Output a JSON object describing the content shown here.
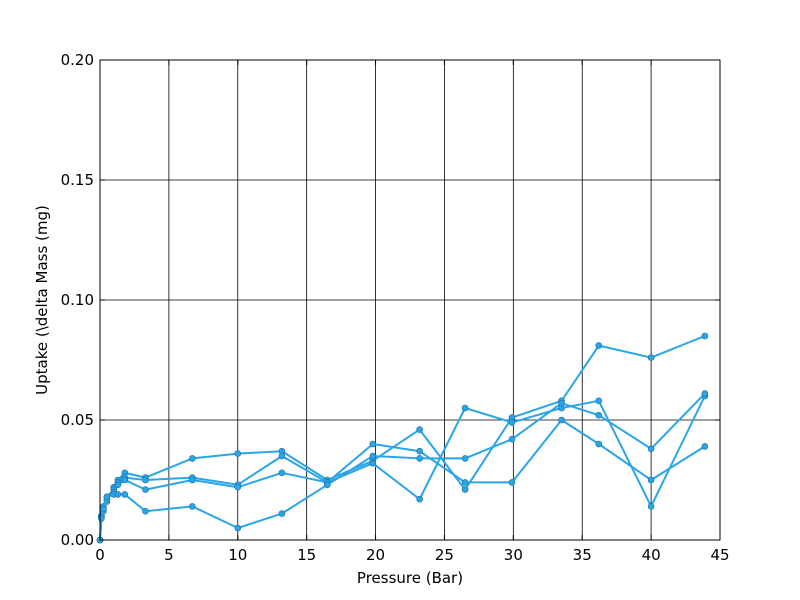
{
  "chart_data": {
    "type": "line",
    "title": "",
    "xlabel": "Pressure (Bar)",
    "ylabel": "Uptake (\\delta Mass (mg)",
    "xlim": [
      0,
      45
    ],
    "ylim": [
      0,
      0.2
    ],
    "xticks": [
      0,
      5,
      10,
      15,
      20,
      25,
      30,
      35,
      40,
      45
    ],
    "yticks": [
      0,
      0.05,
      0.1,
      0.15,
      0.2
    ],
    "xtick_labels": [
      "0",
      "5",
      "10",
      "15",
      "20",
      "25",
      "30",
      "35",
      "40",
      "45"
    ],
    "ytick_labels": [
      "0.00",
      "0.05",
      "0.10",
      "0.15",
      "0.20"
    ],
    "grid": true,
    "line_color": "#2aa5e8",
    "marker_color": "#2aa5e8",
    "series": [
      {
        "x": [
          0,
          0.1,
          0.25,
          0.5,
          1.0,
          1.3,
          1.8,
          3.3,
          6.7,
          10.0,
          13.2,
          16.5,
          19.8,
          23.2,
          26.5,
          29.9,
          33.5,
          36.2,
          40.0,
          43.9
        ],
        "y": [
          0,
          0.01,
          0.014,
          0.016,
          0.022,
          0.025,
          0.028,
          0.026,
          0.034,
          0.036,
          0.037,
          0.025,
          0.033,
          0.046,
          0.021,
          0.051,
          0.058,
          0.081,
          0.076,
          0.085
        ]
      },
      {
        "x": [
          0,
          0.1,
          0.25,
          0.5,
          1.0,
          1.3,
          1.8,
          3.3,
          6.7,
          10.0,
          13.2,
          16.5,
          19.8,
          23.2,
          26.5,
          29.9,
          33.5,
          36.2,
          40.0,
          43.9
        ],
        "y": [
          0,
          0.01,
          0.013,
          0.018,
          0.021,
          0.024,
          0.026,
          0.025,
          0.026,
          0.023,
          0.035,
          0.024,
          0.04,
          0.037,
          0.024,
          0.024,
          0.05,
          0.04,
          0.025,
          0.039
        ]
      },
      {
        "x": [
          0,
          0.1,
          0.25,
          0.5,
          1.0,
          1.3,
          1.8,
          3.3,
          6.7,
          10.0,
          13.2,
          16.5,
          19.8,
          23.2,
          26.5,
          29.9,
          33.5,
          36.2,
          40.0,
          43.9
        ],
        "y": [
          0,
          0.01,
          0.012,
          0.017,
          0.02,
          0.023,
          0.025,
          0.021,
          0.025,
          0.022,
          0.028,
          0.024,
          0.032,
          0.017,
          0.055,
          0.049,
          0.055,
          0.058,
          0.014,
          0.06
        ]
      },
      {
        "x": [
          0,
          0.1,
          0.25,
          0.5,
          1.0,
          1.3,
          1.8,
          3.3,
          6.7,
          10.0,
          13.2,
          16.5,
          19.8,
          23.2,
          26.5,
          29.9,
          33.5,
          36.2,
          40.0,
          43.9
        ],
        "y": [
          0,
          0.009,
          0.013,
          0.018,
          0.019,
          0.019,
          0.019,
          0.012,
          0.014,
          0.005,
          0.011,
          0.023,
          0.035,
          0.034,
          0.034,
          0.042,
          0.057,
          0.052,
          0.038,
          0.061
        ]
      }
    ]
  }
}
